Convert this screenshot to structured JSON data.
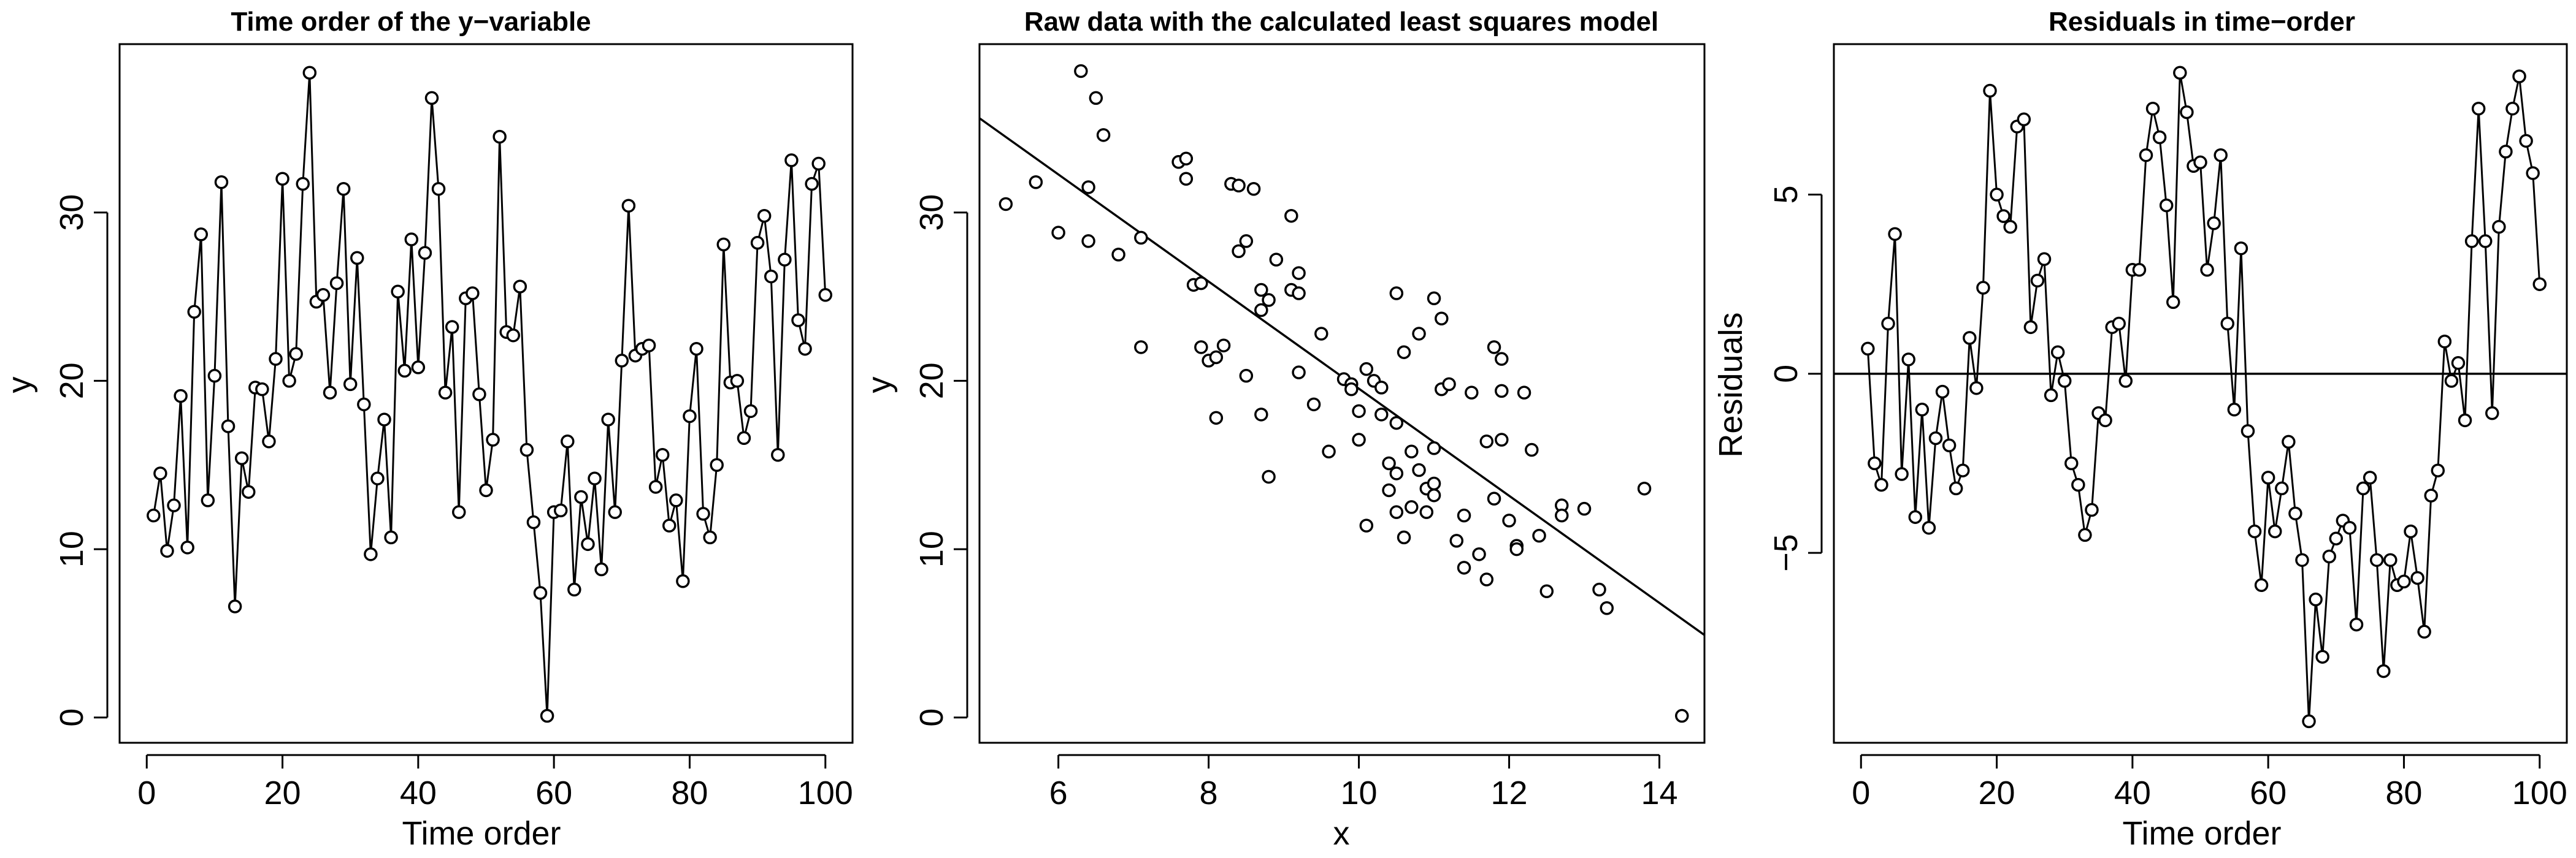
{
  "chart_data": [
    {
      "type": "line",
      "title": "Time order of the y−variable",
      "xlabel": "Time order",
      "ylabel": "y",
      "xlim": [
        -4,
        104
      ],
      "ylim": [
        -1.5,
        40
      ],
      "xticks": [
        0,
        20,
        40,
        60,
        80,
        100
      ],
      "yticks": [
        0,
        10,
        20,
        30
      ],
      "markers": true,
      "x": [
        1,
        2,
        3,
        4,
        5,
        6,
        7,
        8,
        9,
        10,
        11,
        12,
        13,
        14,
        15,
        16,
        17,
        18,
        19,
        20,
        21,
        22,
        23,
        24,
        25,
        26,
        27,
        28,
        29,
        30,
        31,
        32,
        33,
        34,
        35,
        36,
        37,
        38,
        39,
        40,
        41,
        42,
        43,
        44,
        45,
        46,
        47,
        48,
        49,
        50,
        51,
        52,
        53,
        54,
        55,
        56,
        57,
        58,
        59,
        60,
        61,
        62,
        63,
        64,
        65,
        66,
        67,
        68,
        69,
        70,
        71,
        72,
        73,
        74,
        75,
        76,
        77,
        78,
        79,
        80,
        81,
        82,
        83,
        84,
        85,
        86,
        87,
        88,
        89,
        90,
        91,
        92,
        93,
        94,
        95,
        96,
        97,
        98,
        99,
        100
      ],
      "y": [
        12.0,
        14.5,
        9.9,
        12.6,
        19.1,
        10.1,
        24.1,
        28.7,
        12.9,
        20.3,
        31.8,
        17.3,
        6.6,
        15.4,
        13.4,
        19.6,
        19.5,
        16.4,
        21.3,
        32.0,
        20.0,
        21.6,
        31.7,
        38.3,
        24.7,
        25.1,
        19.3,
        25.8,
        31.4,
        19.8,
        27.3,
        18.6,
        9.7,
        14.2,
        17.7,
        10.7,
        25.3,
        20.6,
        28.4,
        20.8,
        27.6,
        36.8,
        31.4,
        19.3,
        23.2,
        12.2,
        24.9,
        25.2,
        19.2,
        13.5,
        16.5,
        34.5,
        22.9,
        22.7,
        25.6,
        15.9,
        11.6,
        7.4,
        0.1,
        12.2,
        12.3,
        16.4,
        7.6,
        13.1,
        10.3,
        14.2,
        8.8,
        17.7,
        12.2,
        21.2,
        30.4,
        21.5,
        21.9,
        22.1,
        13.7,
        15.6,
        11.4,
        12.9,
        8.1,
        17.9,
        21.9,
        12.1,
        10.7,
        15.0,
        28.1,
        19.9,
        20.0,
        16.6,
        18.2,
        28.2,
        29.8,
        26.2,
        15.6,
        27.2,
        33.1,
        23.6,
        21.9,
        31.7,
        32.9,
        25.1
      ]
    },
    {
      "type": "scatter",
      "title": "Raw data with the calculated least squares model",
      "xlabel": "x",
      "ylabel": "y",
      "xlim": [
        4.95,
        14.6
      ],
      "ylim": [
        -1.5,
        40
      ],
      "xticks": [
        6,
        8,
        10,
        12,
        14
      ],
      "yticks": [
        0,
        10,
        20,
        30
      ],
      "fit_line": {
        "x": [
          4.95,
          14.6
        ],
        "y": [
          35.6,
          4.9
        ]
      },
      "points": [
        [
          5.3,
          30.5
        ],
        [
          5.7,
          31.8
        ],
        [
          6.0,
          28.8
        ],
        [
          6.3,
          38.4
        ],
        [
          6.4,
          31.5
        ],
        [
          6.4,
          28.3
        ],
        [
          6.5,
          36.8
        ],
        [
          6.6,
          34.6
        ],
        [
          6.8,
          27.5
        ],
        [
          7.1,
          22.0
        ],
        [
          7.1,
          28.5
        ],
        [
          7.6,
          33.0
        ],
        [
          7.7,
          33.2
        ],
        [
          7.7,
          32.0
        ],
        [
          7.8,
          25.7
        ],
        [
          7.9,
          22.0
        ],
        [
          7.9,
          25.8
        ],
        [
          8.0,
          21.2
        ],
        [
          8.1,
          21.4
        ],
        [
          8.1,
          17.8
        ],
        [
          8.2,
          22.1
        ],
        [
          8.3,
          31.7
        ],
        [
          8.4,
          31.6
        ],
        [
          8.4,
          27.7
        ],
        [
          8.5,
          28.3
        ],
        [
          8.5,
          20.3
        ],
        [
          8.6,
          31.4
        ],
        [
          8.7,
          25.4
        ],
        [
          8.7,
          24.2
        ],
        [
          8.7,
          18.0
        ],
        [
          8.8,
          24.8
        ],
        [
          8.8,
          14.3
        ],
        [
          8.9,
          27.2
        ],
        [
          9.1,
          29.8
        ],
        [
          9.1,
          25.4
        ],
        [
          9.2,
          25.2
        ],
        [
          9.2,
          26.4
        ],
        [
          9.2,
          20.5
        ],
        [
          9.4,
          18.6
        ],
        [
          9.5,
          22.8
        ],
        [
          9.6,
          15.8
        ],
        [
          9.8,
          20.1
        ],
        [
          9.9,
          19.8
        ],
        [
          9.9,
          19.5
        ],
        [
          10.0,
          18.2
        ],
        [
          10.0,
          16.5
        ],
        [
          10.1,
          11.4
        ],
        [
          10.1,
          20.7
        ],
        [
          10.2,
          20.0
        ],
        [
          10.3,
          19.6
        ],
        [
          10.3,
          18.0
        ],
        [
          10.4,
          15.1
        ],
        [
          10.4,
          13.5
        ],
        [
          10.5,
          25.2
        ],
        [
          10.5,
          17.5
        ],
        [
          10.5,
          14.5
        ],
        [
          10.5,
          12.2
        ],
        [
          10.6,
          10.7
        ],
        [
          10.6,
          21.7
        ],
        [
          10.7,
          12.5
        ],
        [
          10.7,
          15.8
        ],
        [
          10.8,
          22.8
        ],
        [
          10.8,
          14.7
        ],
        [
          10.9,
          13.6
        ],
        [
          10.9,
          12.2
        ],
        [
          11.0,
          24.9
        ],
        [
          11.0,
          16.0
        ],
        [
          11.0,
          13.9
        ],
        [
          11.0,
          13.2
        ],
        [
          11.1,
          23.7
        ],
        [
          11.1,
          19.5
        ],
        [
          11.2,
          19.8
        ],
        [
          11.3,
          10.5
        ],
        [
          11.4,
          12.0
        ],
        [
          11.4,
          8.9
        ],
        [
          11.5,
          19.3
        ],
        [
          11.6,
          9.7
        ],
        [
          11.7,
          8.2
        ],
        [
          11.7,
          16.4
        ],
        [
          11.8,
          13.0
        ],
        [
          11.8,
          22.0
        ],
        [
          11.9,
          21.3
        ],
        [
          11.9,
          19.4
        ],
        [
          11.9,
          16.5
        ],
        [
          12.0,
          11.7
        ],
        [
          12.1,
          10.2
        ],
        [
          12.1,
          10.0
        ],
        [
          12.2,
          19.3
        ],
        [
          12.3,
          15.9
        ],
        [
          12.4,
          10.8
        ],
        [
          12.5,
          7.5
        ],
        [
          12.7,
          12.6
        ],
        [
          12.7,
          12.0
        ],
        [
          13.0,
          12.4
        ],
        [
          13.2,
          7.6
        ],
        [
          13.3,
          6.5
        ],
        [
          13.8,
          13.6
        ],
        [
          14.3,
          0.1
        ]
      ]
    },
    {
      "type": "line",
      "title": "Residuals in time−order",
      "xlabel": "Time order",
      "ylabel": "Residuals",
      "xlim": [
        -4,
        104
      ],
      "ylim": [
        -10.3,
        9.2
      ],
      "xticks": [
        0,
        20,
        40,
        60,
        80,
        100
      ],
      "yticks": [
        -5,
        0,
        5
      ],
      "yticklabels": [
        "−5",
        "0",
        "5"
      ],
      "markers": true,
      "reference_line": 0,
      "x": [
        1,
        2,
        3,
        4,
        5,
        6,
        7,
        8,
        9,
        10,
        11,
        12,
        13,
        14,
        15,
        16,
        17,
        18,
        19,
        20,
        21,
        22,
        23,
        24,
        25,
        26,
        27,
        28,
        29,
        30,
        31,
        32,
        33,
        34,
        35,
        36,
        37,
        38,
        39,
        40,
        41,
        42,
        43,
        44,
        45,
        46,
        47,
        48,
        49,
        50,
        51,
        52,
        53,
        54,
        55,
        56,
        57,
        58,
        59,
        60,
        61,
        62,
        63,
        64,
        65,
        66,
        67,
        68,
        69,
        70,
        71,
        72,
        73,
        74,
        75,
        76,
        77,
        78,
        79,
        80,
        81,
        82,
        83,
        84,
        85,
        86,
        87,
        88,
        89,
        90,
        91,
        92,
        93,
        94,
        95,
        96,
        97,
        98,
        99,
        100
      ],
      "y": [
        0.7,
        -2.5,
        -3.1,
        1.4,
        3.9,
        -2.8,
        0.4,
        -4.0,
        -1.0,
        -4.3,
        -1.8,
        -0.5,
        -2.0,
        -3.2,
        -2.7,
        1.0,
        -0.4,
        2.4,
        7.9,
        5.0,
        4.4,
        4.1,
        6.9,
        7.1,
        1.3,
        2.6,
        3.2,
        -0.6,
        0.6,
        -0.2,
        -2.5,
        -3.1,
        -4.5,
        -3.8,
        -1.1,
        -1.3,
        1.3,
        1.4,
        -0.2,
        2.9,
        2.9,
        6.1,
        7.4,
        6.6,
        4.7,
        2.0,
        8.4,
        7.3,
        5.8,
        5.9,
        2.9,
        4.2,
        6.1,
        1.4,
        -1.0,
        3.5,
        -1.6,
        -4.4,
        -5.9,
        -2.9,
        -4.4,
        -3.2,
        -1.9,
        -3.9,
        -5.2,
        -9.7,
        -6.3,
        -7.9,
        -5.1,
        -4.6,
        -4.1,
        -4.3,
        -7.0,
        -3.2,
        -2.9,
        -5.2,
        -8.3,
        -5.2,
        -5.9,
        -5.8,
        -4.4,
        -5.7,
        -7.2,
        -3.4,
        -2.7,
        0.9,
        -0.2,
        0.3,
        -1.3,
        3.7,
        7.4,
        3.7,
        -1.1,
        4.1,
        6.2,
        7.4,
        8.3,
        6.5,
        5.6,
        2.5
      ]
    }
  ]
}
